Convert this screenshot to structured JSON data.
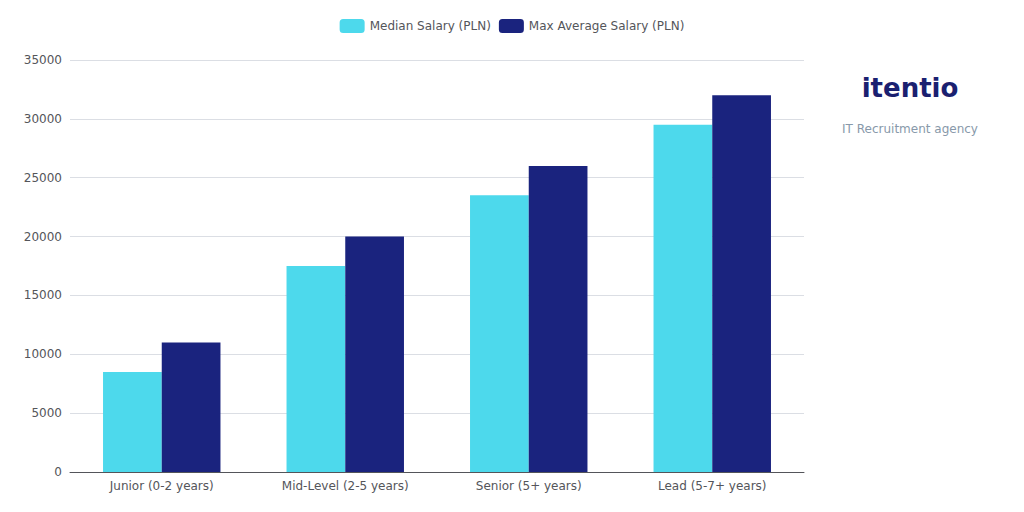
{
  "chart_data": {
    "type": "bar",
    "title": "itentio",
    "subtitle": "IT Recruitment agency",
    "categories": [
      "Junior (0-2 years)",
      "Mid-Level (2-5 years)",
      "Senior (5+ years)",
      "Lead (5-7+ years)"
    ],
    "series": [
      {
        "name": "Median Salary (PLN)",
        "color": "#4DD9EC",
        "values": [
          8500,
          17500,
          23500,
          29500
        ]
      },
      {
        "name": "Max Average Salary (PLN)",
        "color": "#1A237E",
        "values": [
          11000,
          20000,
          26000,
          32000
        ]
      }
    ],
    "ylim": [
      0,
      35000
    ],
    "yticks": [
      0,
      5000,
      10000,
      15000,
      20000,
      25000,
      30000,
      35000
    ],
    "grid": true,
    "legend": "top"
  }
}
